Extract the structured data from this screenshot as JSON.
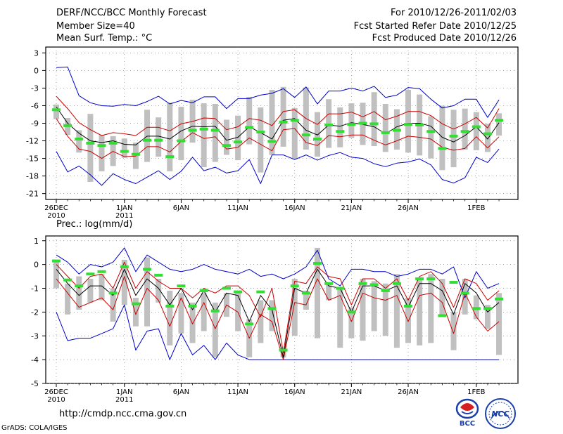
{
  "header": {
    "left": [
      "DERF/NCC/BCC Monthly Forecast",
      "Member Size=40",
      "Mean Surf. Temp.: °C"
    ],
    "right": [
      "For 2010/12/26-2011/02/03",
      "Fcst Started Refer Date 2010/12/25",
      "Fcst Produced Date 2010/12/26"
    ]
  },
  "footer": {
    "url": "http://cmdp.ncc.cma.gov.cn",
    "grads": "GrADS: COLA/IGES",
    "logo_bcc": "BCC",
    "logo_ncc": "NCC"
  },
  "colors": {
    "envelope": "#0000cc",
    "spread": "#cc0000",
    "mean": "#000000",
    "box": "#c0c0c0",
    "marker": "#33dd33"
  },
  "chart_data": [
    {
      "type": "line",
      "title": "Mean Surf. Temp.: °C",
      "ylim": [
        -22,
        4
      ],
      "yticks": [
        3,
        0,
        -3,
        -6,
        -9,
        -12,
        -15,
        -18,
        -21
      ],
      "x_days": 40,
      "xticks": [
        {
          "day": 0,
          "l1": "26DEC",
          "l2": "2010"
        },
        {
          "day": 6,
          "l1": "1JAN",
          "l2": "2011"
        },
        {
          "day": 11,
          "l1": "6JAN",
          "l2": ""
        },
        {
          "day": 16,
          "l1": "11JAN",
          "l2": ""
        },
        {
          "day": 21,
          "l1": "16JAN",
          "l2": ""
        },
        {
          "day": 26,
          "l1": "21JAN",
          "l2": ""
        },
        {
          "day": 31,
          "l1": "26JAN",
          "l2": ""
        },
        {
          "day": 37,
          "l1": "1FEB",
          "l2": ""
        }
      ],
      "series": [
        {
          "name": "max",
          "values": [
            0.5,
            0.6,
            -4.3,
            -5.5,
            -6,
            -6.1,
            -5.8,
            -6,
            -5.3,
            -4.4,
            -5.7,
            -5.1,
            -5.5,
            -4.5,
            -4.5,
            -6.5,
            -4.8,
            -4.8,
            -4.2,
            -3.9,
            -3.1,
            -4.6,
            -2.8,
            -5.7,
            -3.5,
            -3.5,
            -3,
            -3.5,
            -2.7,
            -4.6,
            -4.2,
            -2.9,
            -3.1,
            -4.9,
            -6.4,
            -6,
            -4.9,
            -4.9,
            -8,
            -5
          ]
        },
        {
          "name": "upper",
          "values": [
            -4.4,
            -6.5,
            -8.9,
            -10.1,
            -11.1,
            -10.6,
            -10.8,
            -11.1,
            -9.7,
            -9.7,
            -10.3,
            -9.1,
            -8.7,
            -8.1,
            -8.2,
            -10.1,
            -9.6,
            -8.2,
            -8.5,
            -9.4,
            -7,
            -6.7,
            -8.2,
            -9.2,
            -7.4,
            -7.4,
            -7.1,
            -7.9,
            -7,
            -8.4,
            -7.8,
            -7,
            -7,
            -7.7,
            -9.1,
            -10,
            -9.1,
            -8,
            -9.8,
            -6.5
          ]
        },
        {
          "name": "mean",
          "values": [
            -6.2,
            -9,
            -10.7,
            -12,
            -12.3,
            -12,
            -12.6,
            -12.7,
            -11.2,
            -11.2,
            -11.7,
            -10.3,
            -9.5,
            -9.6,
            -9.5,
            -11.9,
            -11.4,
            -9.6,
            -10.6,
            -11.7,
            -8.5,
            -8.2,
            -10.2,
            -11,
            -9.3,
            -9.5,
            -8.9,
            -9.2,
            -9.6,
            -10.8,
            -9.6,
            -9,
            -9,
            -9.5,
            -11.4,
            -12.2,
            -11.1,
            -9.6,
            -11.7,
            -8.9
          ]
        },
        {
          "name": "lower",
          "values": [
            -8.2,
            -11.2,
            -13.4,
            -13.8,
            -15,
            -13.8,
            -14.7,
            -14.6,
            -13,
            -13,
            -13.9,
            -12.1,
            -10.6,
            -11.6,
            -11.3,
            -13.4,
            -13.1,
            -11.5,
            -12.6,
            -13.7,
            -10.1,
            -9.9,
            -12.3,
            -12.8,
            -11.1,
            -11.3,
            -11,
            -11,
            -11.9,
            -12.7,
            -12,
            -11.2,
            -11.4,
            -11.7,
            -13.1,
            -13.6,
            -13.3,
            -11.3,
            -13.2,
            -11.3
          ]
        },
        {
          "name": "min",
          "values": [
            -13.8,
            -17.3,
            -16.3,
            -17.8,
            -19.6,
            -17.6,
            -18.6,
            -19.3,
            -18.2,
            -17.1,
            -18.6,
            -17.2,
            -14.8,
            -17.1,
            -16.5,
            -17.5,
            -17.1,
            -15.2,
            -19.3,
            -14.4,
            -14.4,
            -15.2,
            -14.4,
            -15.3,
            -14.5,
            -14,
            -14.8,
            -15,
            -15.9,
            -16.4,
            -15.8,
            -15.6,
            -15.1,
            -16.1,
            -18.6,
            -19.2,
            -18.3,
            -14.8,
            -15.7,
            -13.4
          ]
        }
      ],
      "boxes": [
        [
          -5.8,
          -8.3
        ],
        [
          -8.1,
          -11
        ],
        [
          -10.2,
          -14
        ],
        [
          -7.4,
          -19
        ],
        [
          -11,
          -17.2
        ],
        [
          -11.2,
          -16.3
        ],
        [
          -11.6,
          -14.9
        ],
        [
          -12.3,
          -16.8
        ],
        [
          -6.7,
          -15.6
        ],
        [
          -8,
          -14.7
        ],
        [
          -5.5,
          -17.2
        ],
        [
          -6.2,
          -15.3
        ],
        [
          -5,
          -12.3
        ],
        [
          -5.6,
          -16.5
        ],
        [
          -5.7,
          -15.6
        ],
        [
          -8.4,
          -14.4
        ],
        [
          -7.7,
          -15.3
        ],
        [
          -4.5,
          -12.6
        ],
        [
          -6.3,
          -17.4
        ],
        [
          -3.3,
          -14.4
        ],
        [
          -2.8,
          -13
        ],
        [
          -6.4,
          -15.1
        ],
        [
          -2.9,
          -13.5
        ],
        [
          -7.1,
          -14.7
        ],
        [
          -4.9,
          -13.2
        ],
        [
          -6.3,
          -13.1
        ],
        [
          -5.6,
          -11.5
        ],
        [
          -5.5,
          -12.7
        ],
        [
          -3.7,
          -12.9
        ],
        [
          -5.7,
          -13.9
        ],
        [
          -6.6,
          -13.5
        ],
        [
          -3.3,
          -14
        ],
        [
          -4.1,
          -14.5
        ],
        [
          -7.8,
          -15
        ],
        [
          -6,
          -17
        ],
        [
          -6.7,
          -16.5
        ],
        [
          -6.5,
          -13.5
        ],
        [
          -7.1,
          -13.6
        ],
        [
          -9.1,
          -13.9
        ],
        [
          -7.3,
          -11.1
        ]
      ],
      "markers": [
        -6.7,
        -9.4,
        -11.7,
        -12.4,
        -12.8,
        -12.4,
        -13.8,
        -14.3,
        -11.9,
        -11.9,
        -14.7,
        -12,
        -10.2,
        -10,
        -10.2,
        -12.8,
        -12.2,
        -9.7,
        -10.5,
        -12.1,
        -8.8,
        -8.5,
        -11,
        -11.7,
        -9.3,
        -10.4,
        -9.2,
        -9,
        -9.1,
        -10.6,
        -10.2,
        -9.2,
        -9.3,
        -10.4,
        -13.3,
        -11.2,
        -10.4,
        -9.6,
        -10.8,
        -8.5
      ]
    },
    {
      "type": "line",
      "title": "Prec.: log(mm/d)",
      "ylim": [
        -5,
        1.2
      ],
      "yticks": [
        1,
        0,
        -1,
        -2,
        -3,
        -4,
        -5
      ],
      "x_days": 40,
      "xticks": [
        {
          "day": 0,
          "l1": "26DEC",
          "l2": "2010"
        },
        {
          "day": 6,
          "l1": "1JAN",
          "l2": "2011"
        },
        {
          "day": 11,
          "l1": "6JAN",
          "l2": ""
        },
        {
          "day": 16,
          "l1": "11JAN",
          "l2": ""
        },
        {
          "day": 21,
          "l1": "16JAN",
          "l2": ""
        },
        {
          "day": 26,
          "l1": "21JAN",
          "l2": ""
        },
        {
          "day": 31,
          "l1": "26JAN",
          "l2": ""
        },
        {
          "day": 37,
          "l1": "1FEB",
          "l2": ""
        }
      ],
      "series": [
        {
          "name": "max",
          "values": [
            0.4,
            0.1,
            -0.4,
            0,
            -0.1,
            0.1,
            0.7,
            -0.3,
            0.4,
            0.1,
            -0.2,
            -0.3,
            -0.2,
            0,
            -0.2,
            -0.3,
            -0.4,
            -0.2,
            -0.5,
            -0.4,
            -0.6,
            -0.4,
            -0.1,
            0.6,
            -0.6,
            -0.9,
            -0.2,
            -0.2,
            -0.3,
            -0.3,
            -0.5,
            -0.4,
            -0.2,
            -0.2,
            -0.4,
            -0.1,
            -1.4,
            -0.3,
            -1,
            -0.8
          ]
        },
        {
          "name": "upper",
          "values": [
            0,
            -0.5,
            -1,
            -0.5,
            -0.4,
            -1,
            0.1,
            -1,
            -0.3,
            -0.7,
            -1,
            -1,
            -1.4,
            -1,
            -1.2,
            -0.9,
            -0.9,
            -1.3,
            -2.2,
            -1,
            -3.7,
            -0.7,
            -0.8,
            -0.1,
            -0.5,
            -0.6,
            -1.7,
            -0.6,
            -0.6,
            -1,
            -0.6,
            -1.5,
            -0.5,
            -0.3,
            -0.8,
            -1.8,
            -0.6,
            -0.8,
            -1.5,
            -1.1
          ]
        },
        {
          "name": "mean",
          "values": [
            -0.2,
            -0.8,
            -1.3,
            -0.9,
            -0.9,
            -1.3,
            -0.2,
            -1.3,
            -0.6,
            -1,
            -1.7,
            -1,
            -1.9,
            -1.1,
            -2,
            -1.2,
            -1.3,
            -2.4,
            -1.3,
            -1.9,
            -3.9,
            -1,
            -1.2,
            -0.2,
            -0.9,
            -1,
            -2,
            -0.9,
            -0.9,
            -1.1,
            -0.9,
            -1.8,
            -0.8,
            -0.8,
            -1.1,
            -2.1,
            -0.8,
            -1.2,
            -2,
            -1.6
          ]
        },
        {
          "name": "lower",
          "values": [
            -0.6,
            -1.2,
            -1.8,
            -1.6,
            -1.4,
            -1.9,
            -0.5,
            -2.1,
            -1,
            -1.5,
            -2.6,
            -1.4,
            -2.5,
            -1.6,
            -2.7,
            -1.7,
            -2,
            -3.1,
            -2.1,
            -2.4,
            -4,
            -1.6,
            -1.7,
            -0.6,
            -1.5,
            -1.3,
            -2.4,
            -1.2,
            -1.4,
            -1.5,
            -1.3,
            -2.4,
            -1.3,
            -1.2,
            -1.6,
            -2.9,
            -1.2,
            -2.2,
            -2.8,
            -2.4
          ]
        },
        {
          "name": "min",
          "values": [
            -2,
            -3.2,
            -3.1,
            -3.1,
            -2.9,
            -2.7,
            -1.7,
            -3.6,
            -2.8,
            -2.7,
            -4,
            -2.9,
            -3.8,
            -3.4,
            -4,
            -3.3,
            -3.8,
            -4,
            -4,
            -4,
            -4,
            -4,
            -4,
            -4,
            -4,
            -4,
            -4,
            -4,
            -4,
            -4,
            -4,
            -4,
            -4,
            -4,
            -4,
            -4,
            -4,
            -4,
            -4,
            -4
          ]
        }
      ],
      "boxes": [
        [
          0.2,
          -1
        ],
        [
          -0.8,
          -2.1
        ],
        [
          -0.5,
          -1.9
        ],
        [
          -0.6,
          -1.6
        ],
        [
          -0.4,
          -1.5
        ],
        [
          -1,
          -2.4
        ],
        [
          0.2,
          -1.7
        ],
        [
          -1.4,
          -2.6
        ],
        [
          0.3,
          -2.6
        ],
        [
          -0.6,
          -1.6
        ],
        [
          -1.1,
          -3.4
        ],
        [
          -1.2,
          -2.9
        ],
        [
          -1.6,
          -3.3
        ],
        [
          -1.2,
          -2.8
        ],
        [
          -1.6,
          -3.9
        ],
        [
          -1.2,
          -2.2
        ],
        [
          -1.1,
          -2.8
        ],
        [
          -2.3,
          -3.9
        ],
        [
          -1.5,
          -3.3
        ],
        [
          -1.5,
          -2.8
        ],
        [
          -3.5,
          -3.9
        ],
        [
          -0.6,
          -3
        ],
        [
          -1.1,
          -1.9
        ],
        [
          0.7,
          -3.1
        ],
        [
          -0.8,
          -1.5
        ],
        [
          -1,
          -3.5
        ],
        [
          -1.8,
          -3.1
        ],
        [
          -0.6,
          -3.2
        ],
        [
          -0.7,
          -2.8
        ],
        [
          -0.8,
          -3
        ],
        [
          -0.4,
          -3.5
        ],
        [
          -1.4,
          -3.3
        ],
        [
          -0.6,
          -3.4
        ],
        [
          -0.4,
          -3.3
        ],
        [
          -0.6,
          -2.2
        ],
        [
          -2,
          -3.6
        ],
        [
          -0.6,
          -2.1
        ],
        [
          -1.3,
          -2.3
        ],
        [
          -1.7,
          -2.7
        ],
        [
          -1.2,
          -3.8
        ]
      ],
      "markers": [
        0.15,
        -0.65,
        -0.9,
        -0.4,
        -0.3,
        -1.2,
        -0.1,
        -1.65,
        -0.2,
        -0.45,
        -1.75,
        -0.9,
        -1.75,
        -1.1,
        -1.95,
        -1,
        -1.15,
        -2.5,
        -1.15,
        -1.85,
        -3.6,
        -0.9,
        -1.2,
        0.05,
        -0.8,
        -1,
        -2,
        -0.8,
        -0.85,
        -1.1,
        -0.8,
        -1.75,
        -0.6,
        -0.6,
        -2.15,
        -0.75,
        -1.2,
        -1.85,
        -1.85,
        -1.45
      ]
    }
  ]
}
